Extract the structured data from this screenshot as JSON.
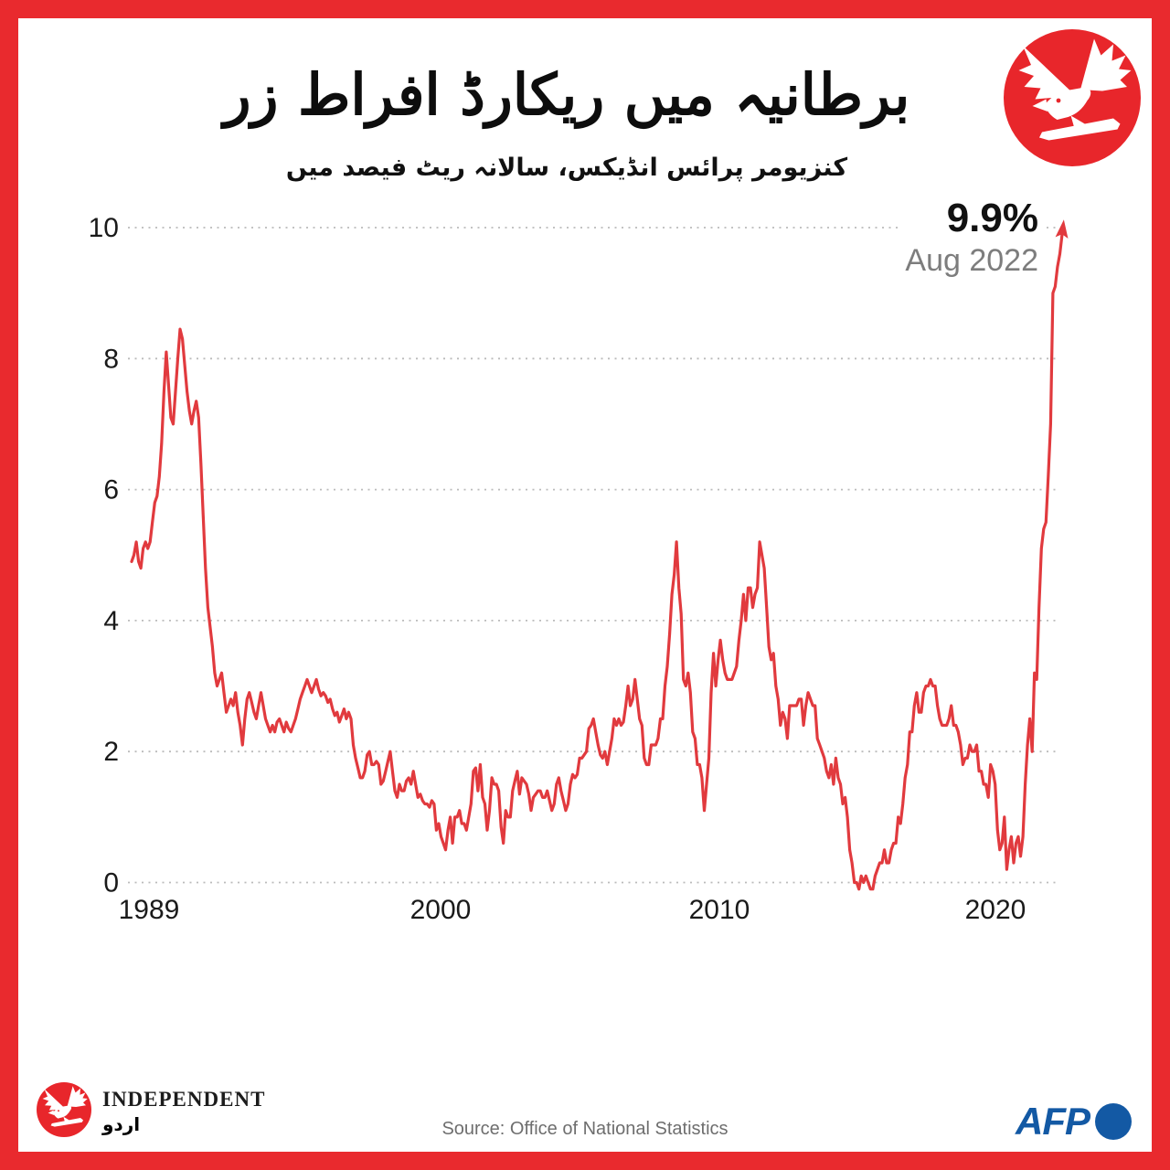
{
  "header": {
    "title_urdu": "برطانیہ میں ریکارڈ افراط زر",
    "subtitle_urdu": "کنزیومر پرائس انڈیکس، سالانہ ریٹ فیصد میں"
  },
  "annotation": {
    "value": "9.9%",
    "date": "Aug 2022"
  },
  "footer": {
    "brand_name": "INDEPENDENT",
    "brand_urdu": "اردو",
    "source": "Source: Office of National Statistics",
    "agency": "AFP"
  },
  "colors": {
    "frame_red": "#e92a2e",
    "line_red": "#e13a3e",
    "afp_blue": "#1359a4",
    "grid_gray": "#bbbbbb",
    "text_dark": "#1a1a1a",
    "text_gray": "#7d7d7d",
    "logo_red": "#e8262b"
  },
  "chart_data": {
    "type": "line",
    "title": "برطانیہ میں ریکارڈ افراط زر",
    "subtitle": "کنزیومر پرائس انڈیکس، سالانہ ریٹ فیصد میں",
    "series_name": "UK Consumer Price Index, annual rate (%)",
    "frequency": "monthly",
    "start": "Jan 1989",
    "end": "Aug 2022",
    "end_label": {
      "value": "9.9%",
      "date": "Aug 2022"
    },
    "x_tick_years": [
      "1989",
      "2000",
      "2010",
      "2020"
    ],
    "y_ticks": [
      0,
      2,
      4,
      6,
      8,
      10
    ],
    "ylim": [
      -0.3,
      10.4
    ],
    "grid": "dotted-horizontal",
    "legend_position": "none",
    "values": [
      4.9,
      5.0,
      5.2,
      4.9,
      4.8,
      5.1,
      5.2,
      5.1,
      5.2,
      5.5,
      5.8,
      5.9,
      6.2,
      6.7,
      7.5,
      8.1,
      7.6,
      7.1,
      7.0,
      7.5,
      8.0,
      8.45,
      8.3,
      7.9,
      7.5,
      7.2,
      7.0,
      7.2,
      7.35,
      7.1,
      6.4,
      5.6,
      4.8,
      4.2,
      3.9,
      3.6,
      3.2,
      3.0,
      3.1,
      3.2,
      2.9,
      2.6,
      2.7,
      2.8,
      2.7,
      2.9,
      2.6,
      2.4,
      2.1,
      2.5,
      2.8,
      2.9,
      2.75,
      2.6,
      2.5,
      2.7,
      2.9,
      2.7,
      2.5,
      2.4,
      2.3,
      2.4,
      2.3,
      2.45,
      2.5,
      2.4,
      2.3,
      2.45,
      2.35,
      2.3,
      2.4,
      2.5,
      2.65,
      2.8,
      2.9,
      3.0,
      3.1,
      3.0,
      2.9,
      3.0,
      3.1,
      2.95,
      2.85,
      2.9,
      2.85,
      2.75,
      2.8,
      2.65,
      2.55,
      2.6,
      2.45,
      2.55,
      2.65,
      2.5,
      2.6,
      2.5,
      2.1,
      1.9,
      1.75,
      1.6,
      1.6,
      1.7,
      1.95,
      2.0,
      1.8,
      1.8,
      1.85,
      1.8,
      1.5,
      1.55,
      1.7,
      1.85,
      2.0,
      1.7,
      1.4,
      1.3,
      1.5,
      1.4,
      1.4,
      1.55,
      1.6,
      1.5,
      1.7,
      1.5,
      1.3,
      1.35,
      1.25,
      1.2,
      1.2,
      1.15,
      1.25,
      1.2,
      0.8,
      0.9,
      0.7,
      0.6,
      0.5,
      0.8,
      1.0,
      0.6,
      1.0,
      1.0,
      1.1,
      0.9,
      0.9,
      0.8,
      1.0,
      1.2,
      1.7,
      1.75,
      1.4,
      1.8,
      1.3,
      1.2,
      0.8,
      1.1,
      1.6,
      1.5,
      1.5,
      1.4,
      0.85,
      0.6,
      1.1,
      1.0,
      1.0,
      1.4,
      1.55,
      1.7,
      1.35,
      1.6,
      1.55,
      1.5,
      1.35,
      1.1,
      1.3,
      1.35,
      1.4,
      1.4,
      1.3,
      1.3,
      1.4,
      1.25,
      1.1,
      1.2,
      1.5,
      1.6,
      1.4,
      1.25,
      1.1,
      1.2,
      1.5,
      1.65,
      1.6,
      1.65,
      1.9,
      1.9,
      1.95,
      2.0,
      2.35,
      2.4,
      2.5,
      2.3,
      2.1,
      1.95,
      1.9,
      2.0,
      1.8,
      2.0,
      2.2,
      2.5,
      2.4,
      2.5,
      2.4,
      2.45,
      2.7,
      3.0,
      2.7,
      2.8,
      3.1,
      2.8,
      2.5,
      2.4,
      1.9,
      1.8,
      1.8,
      2.1,
      2.1,
      2.1,
      2.2,
      2.5,
      2.5,
      3.0,
      3.3,
      3.8,
      4.4,
      4.7,
      5.2,
      4.5,
      4.1,
      3.1,
      3.0,
      3.2,
      2.9,
      2.3,
      2.2,
      1.8,
      1.8,
      1.6,
      1.1,
      1.5,
      1.9,
      2.9,
      3.5,
      3.0,
      3.4,
      3.7,
      3.4,
      3.2,
      3.1,
      3.1,
      3.1,
      3.2,
      3.3,
      3.7,
      4.0,
      4.4,
      4.0,
      4.5,
      4.5,
      4.2,
      4.4,
      4.5,
      5.2,
      5.0,
      4.8,
      4.2,
      3.6,
      3.4,
      3.5,
      3.0,
      2.8,
      2.4,
      2.6,
      2.5,
      2.2,
      2.7,
      2.7,
      2.7,
      2.7,
      2.8,
      2.8,
      2.4,
      2.7,
      2.9,
      2.8,
      2.7,
      2.7,
      2.2,
      2.1,
      2.0,
      1.9,
      1.7,
      1.6,
      1.8,
      1.5,
      1.9,
      1.6,
      1.5,
      1.2,
      1.3,
      1.0,
      0.5,
      0.3,
      0.0,
      0.0,
      -0.1,
      0.1,
      0.0,
      0.1,
      0.0,
      -0.1,
      -0.1,
      0.1,
      0.2,
      0.3,
      0.3,
      0.5,
      0.3,
      0.3,
      0.5,
      0.6,
      0.6,
      1.0,
      0.9,
      1.2,
      1.6,
      1.8,
      2.3,
      2.3,
      2.7,
      2.9,
      2.6,
      2.6,
      2.9,
      3.0,
      3.0,
      3.1,
      3.0,
      3.0,
      2.7,
      2.5,
      2.4,
      2.4,
      2.4,
      2.5,
      2.7,
      2.4,
      2.4,
      2.3,
      2.1,
      1.8,
      1.9,
      1.9,
      2.1,
      2.0,
      2.0,
      2.1,
      1.7,
      1.7,
      1.5,
      1.5,
      1.3,
      1.8,
      1.7,
      1.5,
      0.8,
      0.5,
      0.6,
      1.0,
      0.2,
      0.5,
      0.7,
      0.3,
      0.6,
      0.7,
      0.4,
      0.7,
      1.5,
      2.1,
      2.5,
      2.0,
      3.2,
      3.1,
      4.2,
      5.1,
      5.4,
      5.5,
      6.2,
      7.0,
      9.0,
      9.1,
      9.4,
      9.6,
      9.9
    ]
  }
}
